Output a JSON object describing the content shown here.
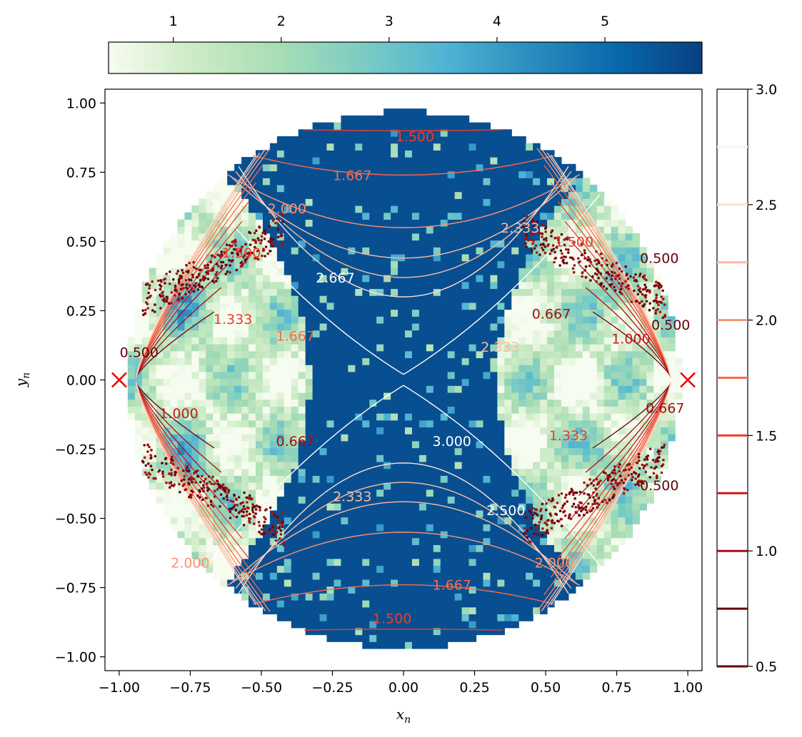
{
  "chart_data": {
    "type": "heatmap",
    "title": "",
    "xlabel": "x",
    "xlabel_sub": "n",
    "ylabel": "y",
    "ylabel_sub": "n",
    "xlim": [
      -1.05,
      1.05
    ],
    "ylim": [
      -1.05,
      1.05
    ],
    "xticks": [
      "−1.00",
      "−0.75",
      "−0.50",
      "−0.25",
      "0.00",
      "0.25",
      "0.50",
      "0.75",
      "1.00"
    ],
    "xtick_values": [
      -1.0,
      -0.75,
      -0.5,
      -0.25,
      0.0,
      0.25,
      0.5,
      0.75,
      1.0
    ],
    "yticks": [
      "1.00",
      "0.75",
      "0.50",
      "0.25",
      "0.00",
      "−0.25",
      "−0.50",
      "−0.75",
      "−1.00"
    ],
    "ytick_values": [
      1.0,
      0.75,
      0.5,
      0.25,
      0.0,
      -0.25,
      -0.5,
      -0.75,
      -1.0
    ],
    "heatmap": {
      "region": "disk",
      "radius": 0.97,
      "colormap": [
        "#f7fcf0",
        "#ccebc5",
        "#a8ddb5",
        "#7bccc4",
        "#4eb3d3",
        "#2b8cbe",
        "#0868ac",
        "#084081"
      ],
      "vmin": 0.4,
      "vmax": 5.9
    },
    "colorbar_top": {
      "orientation": "horizontal",
      "ticks": [
        "1",
        "2",
        "3",
        "4",
        "5"
      ],
      "tick_values": [
        1,
        2,
        3,
        4,
        5
      ],
      "range": [
        0.4,
        5.9
      ]
    },
    "colorbar_right": {
      "orientation": "vertical",
      "ticks": [
        "3.0",
        "2.5",
        "2.0",
        "1.5",
        "1.0",
        "0.5"
      ],
      "tick_values": [
        3.0,
        2.5,
        2.0,
        1.5,
        1.0,
        0.5
      ],
      "range": [
        0.5,
        3.0
      ],
      "level_lines": [
        0.75,
        1.0,
        1.25,
        1.5,
        1.75,
        2.0,
        2.25,
        2.5,
        2.75
      ],
      "level_colors": [
        "#67000d",
        "#a50f15",
        "#cb181d",
        "#ef3b2c",
        "#fb6a4a",
        "#fc9272",
        "#fcbba1",
        "#fee0d2",
        "#fff5f0"
      ]
    },
    "contour_levels": [
      0.5,
      0.667,
      1.0,
      1.333,
      1.5,
      1.667,
      2.0,
      2.333,
      2.5,
      2.667,
      3.0
    ],
    "contour_labels": [
      {
        "text": "1.500",
        "x": 0.04,
        "y": 0.88,
        "level": 1.5
      },
      {
        "text": "1.667",
        "x": -0.18,
        "y": 0.74,
        "level": 1.667
      },
      {
        "text": "2.000",
        "x": -0.41,
        "y": 0.62,
        "level": 2.0
      },
      {
        "text": "2.333",
        "x": 0.41,
        "y": 0.55,
        "level": 2.333
      },
      {
        "text": "2.667",
        "x": -0.24,
        "y": 0.37,
        "level": 2.667
      },
      {
        "text": "2.333",
        "x": 0.34,
        "y": 0.12,
        "level": 2.333
      },
      {
        "text": "3.000",
        "x": 0.17,
        "y": -0.22,
        "level": 3.0
      },
      {
        "text": "2.333",
        "x": -0.18,
        "y": -0.42,
        "level": 2.333
      },
      {
        "text": "2.500",
        "x": 0.36,
        "y": -0.47,
        "level": 2.5
      },
      {
        "text": "2.000",
        "x": 0.53,
        "y": -0.66,
        "level": 2.0
      },
      {
        "text": "1.667",
        "x": 0.17,
        "y": -0.74,
        "level": 1.667
      },
      {
        "text": "1.500",
        "x": -0.04,
        "y": -0.86,
        "level": 1.5
      },
      {
        "text": "2.000",
        "x": -0.75,
        "y": -0.66,
        "level": 2.0
      },
      {
        "text": "1.500",
        "x": -0.57,
        "y": 0.46,
        "level": 1.5
      },
      {
        "text": "1.333",
        "x": -0.6,
        "y": 0.22,
        "level": 1.333
      },
      {
        "text": "1.667",
        "x": -0.38,
        "y": 0.16,
        "level": 1.667
      },
      {
        "text": "0.500",
        "x": -0.93,
        "y": 0.1,
        "level": 0.5
      },
      {
        "text": "1.000",
        "x": -0.79,
        "y": -0.12,
        "level": 1.0
      },
      {
        "text": "0.667",
        "x": -0.38,
        "y": -0.22,
        "level": 0.667
      },
      {
        "text": "1.500",
        "x": 0.6,
        "y": 0.5,
        "level": 1.5
      },
      {
        "text": "0.500",
        "x": 0.9,
        "y": 0.44,
        "level": 0.5
      },
      {
        "text": "0.500",
        "x": 0.94,
        "y": 0.2,
        "level": 0.5
      },
      {
        "text": "1.000",
        "x": 0.8,
        "y": 0.15,
        "level": 1.0
      },
      {
        "text": "0.667",
        "x": 0.52,
        "y": 0.24,
        "level": 0.667
      },
      {
        "text": "1.333",
        "x": 0.58,
        "y": -0.2,
        "level": 1.333
      },
      {
        "text": "0.667",
        "x": 0.92,
        "y": -0.1,
        "level": 0.667
      },
      {
        "text": "0.500",
        "x": 0.9,
        "y": -0.38,
        "level": 0.5
      }
    ],
    "markers": [
      {
        "name": "saddle-left",
        "x": -1.0,
        "y": 0.0,
        "symbol": "x",
        "color": "#ee0000"
      },
      {
        "name": "saddle-right",
        "x": 1.0,
        "y": 0.0,
        "symbol": "x",
        "color": "#ee0000"
      }
    ]
  }
}
